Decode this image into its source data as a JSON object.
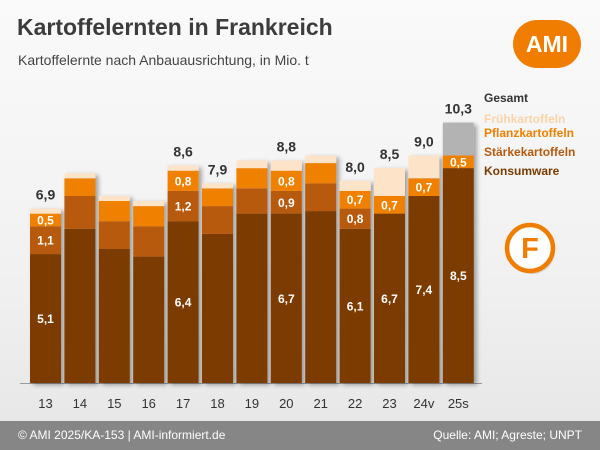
{
  "title": "Kartoffelernten in Frankreich",
  "subtitle": "Kartoffelernte nach Anbauausrichtung, in Mio. t",
  "logo": {
    "text": "AMI",
    "color": "#f07d00"
  },
  "badge": {
    "letter": "F",
    "color": "#f07d00"
  },
  "footer": {
    "left": "© AMI 2025/KA-153 | AMI-informiert.de",
    "right": "Quelle: AMI; Agreste; UNPT"
  },
  "chart_data": {
    "type": "bar",
    "stacked": true,
    "categories": [
      "13",
      "14",
      "15",
      "16",
      "17",
      "18",
      "19",
      "20",
      "21",
      "22",
      "23",
      "24v",
      "25s"
    ],
    "ylim": [
      0,
      10.8
    ],
    "grid": false,
    "legend_position": "right",
    "series": [
      {
        "name": "Konsumware",
        "color": "#7b3b00",
        "values": [
          5.1,
          6.1,
          5.3,
          5.0,
          6.4,
          5.9,
          6.7,
          6.7,
          6.8,
          6.1,
          6.7,
          7.4,
          8.5
        ],
        "labels": [
          "5,1",
          "",
          "",
          "",
          "6,4",
          "",
          "",
          "6,7",
          "",
          "6,1",
          "6,7",
          "7,4",
          "8,5"
        ]
      },
      {
        "name": "Stärkekartoffeln",
        "color": "#b85a0d",
        "values": [
          1.1,
          1.3,
          1.1,
          1.2,
          1.2,
          1.1,
          1.0,
          0.9,
          1.1,
          0.8,
          0.0,
          0.0,
          0.0
        ],
        "labels": [
          "1,1",
          "",
          "",
          "",
          "1,2",
          "",
          "",
          "0,9",
          "",
          "0,8",
          "",
          "",
          ""
        ]
      },
      {
        "name": "Pflanzkartoffeln",
        "color": "#f08000",
        "values": [
          0.5,
          0.7,
          0.8,
          0.8,
          0.8,
          0.7,
          0.8,
          0.8,
          0.8,
          0.7,
          0.7,
          0.7,
          0.5
        ],
        "labels": [
          "0,5",
          "",
          "",
          "",
          "0,8",
          "",
          "",
          "0,8",
          "",
          "0,7",
          "0,7",
          "0,7",
          "0,5"
        ]
      },
      {
        "name": "Frühkartoffeln",
        "color": "#fde3c8",
        "values": [
          0.2,
          0.2,
          0.2,
          0.2,
          0.2,
          0.2,
          0.3,
          0.4,
          0.3,
          0.4,
          1.1,
          0.9,
          0.0
        ],
        "labels": [
          "",
          "",
          "",
          "",
          "",
          "",
          "",
          "",
          "",
          "",
          "",
          "",
          ""
        ]
      },
      {
        "name": "Gesamt",
        "color": "#b3b3b3",
        "values": [
          0,
          0,
          0,
          0,
          0,
          0,
          0,
          0,
          0,
          0,
          0,
          0,
          1.3
        ],
        "labels": [
          "",
          "",
          "",
          "",
          "",
          "",
          "",
          "",
          "",
          "",
          "",
          "",
          ""
        ]
      }
    ],
    "totals": [
      6.9,
      8.3,
      7.4,
      7.2,
      8.6,
      7.9,
      8.8,
      8.8,
      9.0,
      8.0,
      8.5,
      9.0,
      10.3
    ],
    "total_labels": [
      "6,9",
      "",
      "",
      "",
      "8,6",
      "7,9",
      "",
      "8,8",
      "",
      "8,0",
      "8,5",
      "9,0",
      "10,3"
    ],
    "legend_entries": [
      {
        "label": "Gesamt",
        "color": "#333333"
      },
      {
        "label": "Frühkartoffeln",
        "color": "#fad4a8"
      },
      {
        "label": "Pflanzkartoffeln",
        "color": "#f08000"
      },
      {
        "label": "Stärkekartoffeln",
        "color": "#b85a0d"
      },
      {
        "label": "Konsumware",
        "color": "#7b3b00"
      }
    ]
  }
}
